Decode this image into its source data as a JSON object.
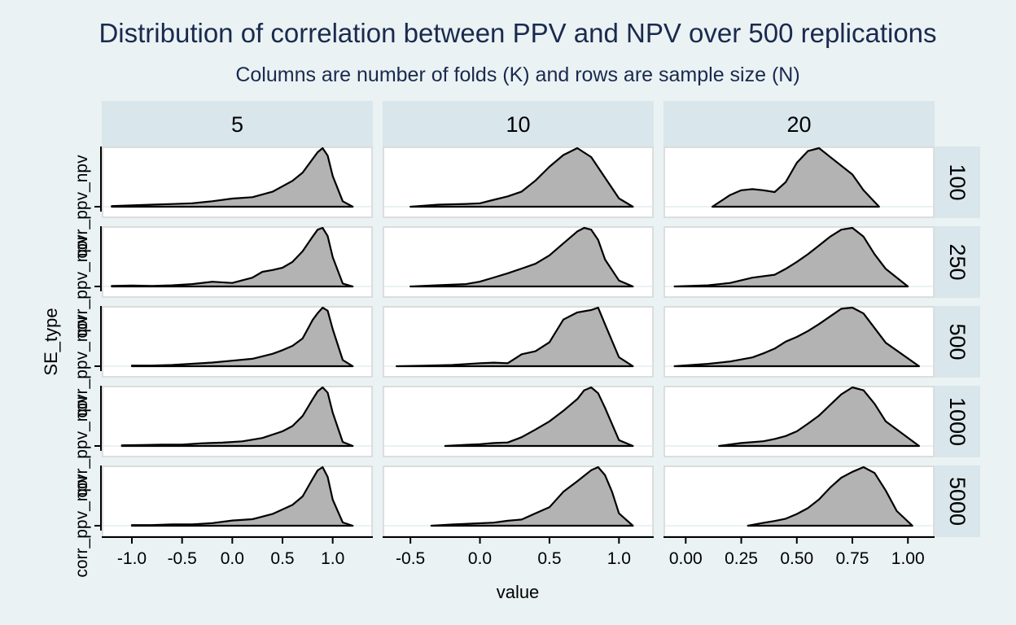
{
  "chart_data": {
    "type": "area",
    "title": "Distribution of correlation between PPV and NPV over 500 replications",
    "subtitle": "Columns are number of folds (K) and rows are sample size (N)",
    "xlabel": "value",
    "ylabel": "SE_type",
    "y_tick_labels": [
      "corr_ppv_npv",
      "corr_ppv_npv",
      "corr_ppv_npv",
      "corr_ppv_npv",
      "corr_ppv_npv"
    ],
    "columns": [
      "5",
      "10",
      "20"
    ],
    "rows": [
      "100",
      "250",
      "500",
      "1000",
      "5000"
    ],
    "x_ticks": [
      {
        "values": [
          -1.0,
          -0.5,
          0.0,
          0.5,
          1.0
        ],
        "labels": [
          "-1.0",
          "-0.5",
          "0.0",
          "0.5",
          "1.0"
        ],
        "xlim": [
          -1.3,
          1.4
        ]
      },
      {
        "values": [
          -0.5,
          0.0,
          0.5,
          1.0
        ],
        "labels": [
          "-0.5",
          "0.0",
          "0.5",
          "1.0"
        ],
        "xlim": [
          -0.7,
          1.25
        ]
      },
      {
        "values": [
          0.0,
          0.25,
          0.5,
          0.75,
          1.0
        ],
        "labels": [
          "0.00",
          "0.25",
          "0.50",
          "0.75",
          "1.00"
        ],
        "xlim": [
          -0.1,
          1.12
        ]
      }
    ],
    "fill_color": "#b3b3b3",
    "line_color": "#000000",
    "panels": [
      [
        {
          "x": [
            -1.2,
            -1.0,
            -0.8,
            -0.6,
            -0.4,
            -0.2,
            0.0,
            0.2,
            0.4,
            0.6,
            0.7,
            0.8,
            0.85,
            0.9,
            0.95,
            1.0,
            1.1,
            1.2
          ],
          "density": [
            0.01,
            0.02,
            0.03,
            0.04,
            0.05,
            0.08,
            0.12,
            0.14,
            0.22,
            0.38,
            0.5,
            0.7,
            0.8,
            0.86,
            0.75,
            0.45,
            0.08,
            0.0
          ]
        },
        {
          "x": [
            -1.2,
            -1.0,
            -0.8,
            -0.6,
            -0.4,
            -0.2,
            0.0,
            0.2,
            0.3,
            0.4,
            0.5,
            0.6,
            0.7,
            0.8,
            0.85,
            0.9,
            0.95,
            1.0,
            1.1,
            1.2
          ],
          "density": [
            0.01,
            0.015,
            0.01,
            0.02,
            0.04,
            0.08,
            0.06,
            0.15,
            0.25,
            0.28,
            0.32,
            0.42,
            0.6,
            0.85,
            0.97,
            1.0,
            0.86,
            0.5,
            0.05,
            0.0
          ]
        },
        {
          "x": [
            -1.0,
            -0.8,
            -0.6,
            -0.4,
            -0.2,
            0.0,
            0.2,
            0.4,
            0.5,
            0.6,
            0.7,
            0.8,
            0.85,
            0.9,
            0.95,
            1.0,
            1.1,
            1.2
          ],
          "density": [
            0.01,
            0.01,
            0.02,
            0.04,
            0.06,
            0.09,
            0.12,
            0.2,
            0.26,
            0.33,
            0.45,
            0.75,
            0.86,
            0.95,
            0.9,
            0.6,
            0.1,
            0.0
          ]
        },
        {
          "x": [
            -1.1,
            -0.9,
            -0.7,
            -0.5,
            -0.3,
            -0.1,
            0.1,
            0.3,
            0.5,
            0.6,
            0.7,
            0.8,
            0.85,
            0.9,
            0.95,
            1.0,
            1.1,
            1.2
          ],
          "density": [
            0.01,
            0.015,
            0.02,
            0.02,
            0.04,
            0.05,
            0.07,
            0.12,
            0.22,
            0.3,
            0.45,
            0.7,
            0.82,
            0.88,
            0.8,
            0.5,
            0.06,
            0.0
          ]
        },
        {
          "x": [
            -1.0,
            -0.8,
            -0.6,
            -0.4,
            -0.2,
            0.0,
            0.2,
            0.4,
            0.5,
            0.6,
            0.7,
            0.8,
            0.85,
            0.9,
            0.95,
            1.0,
            1.1,
            1.2
          ],
          "density": [
            0.01,
            0.01,
            0.02,
            0.02,
            0.04,
            0.08,
            0.1,
            0.18,
            0.25,
            0.32,
            0.45,
            0.72,
            0.85,
            0.9,
            0.75,
            0.4,
            0.05,
            0.0
          ]
        }
      ],
      [
        {
          "x": [
            -0.5,
            -0.3,
            -0.1,
            0.0,
            0.1,
            0.2,
            0.3,
            0.4,
            0.5,
            0.6,
            0.7,
            0.8,
            0.9,
            1.0,
            1.1
          ],
          "density": [
            0.0,
            0.03,
            0.04,
            0.05,
            0.1,
            0.15,
            0.22,
            0.38,
            0.58,
            0.75,
            0.85,
            0.72,
            0.42,
            0.12,
            0.0
          ]
        },
        {
          "x": [
            -0.5,
            -0.3,
            -0.1,
            0.0,
            0.1,
            0.2,
            0.3,
            0.4,
            0.5,
            0.6,
            0.7,
            0.75,
            0.8,
            0.85,
            0.9,
            1.0,
            1.1
          ],
          "density": [
            0.0,
            0.02,
            0.04,
            0.08,
            0.15,
            0.22,
            0.3,
            0.38,
            0.52,
            0.72,
            0.92,
            0.98,
            0.95,
            0.78,
            0.45,
            0.1,
            0.0
          ]
        },
        {
          "x": [
            -0.6,
            -0.4,
            -0.2,
            0.0,
            0.1,
            0.2,
            0.3,
            0.4,
            0.5,
            0.6,
            0.7,
            0.8,
            0.85,
            0.9,
            1.0,
            1.1
          ],
          "density": [
            0.0,
            0.01,
            0.02,
            0.05,
            0.06,
            0.05,
            0.2,
            0.25,
            0.4,
            0.78,
            0.9,
            0.94,
            0.98,
            0.7,
            0.15,
            0.0
          ]
        },
        {
          "x": [
            -0.25,
            -0.1,
            0.0,
            0.1,
            0.2,
            0.3,
            0.4,
            0.5,
            0.6,
            0.7,
            0.75,
            0.8,
            0.85,
            0.9,
            1.0,
            1.1
          ],
          "density": [
            0.0,
            0.02,
            0.03,
            0.05,
            0.06,
            0.15,
            0.28,
            0.42,
            0.6,
            0.8,
            0.95,
            1.0,
            0.9,
            0.65,
            0.1,
            0.0
          ]
        },
        {
          "x": [
            -0.35,
            -0.2,
            0.0,
            0.1,
            0.2,
            0.3,
            0.4,
            0.5,
            0.6,
            0.7,
            0.8,
            0.85,
            0.9,
            0.95,
            1.0,
            1.1
          ],
          "density": [
            0.0,
            0.02,
            0.04,
            0.05,
            0.08,
            0.1,
            0.2,
            0.3,
            0.55,
            0.72,
            0.9,
            0.95,
            0.82,
            0.55,
            0.2,
            0.0
          ]
        }
      ],
      [
        {
          "x": [
            0.12,
            0.2,
            0.25,
            0.3,
            0.35,
            0.4,
            0.45,
            0.5,
            0.55,
            0.6,
            0.65,
            0.7,
            0.75,
            0.8,
            0.87
          ],
          "density": [
            0.0,
            0.2,
            0.28,
            0.3,
            0.28,
            0.25,
            0.42,
            0.75,
            0.95,
            1.0,
            0.85,
            0.7,
            0.55,
            0.28,
            0.0
          ]
        },
        {
          "x": [
            -0.05,
            0.1,
            0.2,
            0.3,
            0.4,
            0.45,
            0.5,
            0.55,
            0.6,
            0.65,
            0.7,
            0.75,
            0.8,
            0.85,
            0.9,
            1.0
          ],
          "density": [
            0.0,
            0.02,
            0.06,
            0.15,
            0.2,
            0.3,
            0.42,
            0.55,
            0.7,
            0.85,
            0.97,
            1.0,
            0.85,
            0.55,
            0.3,
            0.0
          ]
        },
        {
          "x": [
            -0.05,
            0.1,
            0.2,
            0.3,
            0.35,
            0.4,
            0.45,
            0.5,
            0.55,
            0.6,
            0.65,
            0.7,
            0.75,
            0.8,
            0.9,
            1.05
          ],
          "density": [
            0.0,
            0.04,
            0.08,
            0.15,
            0.22,
            0.3,
            0.42,
            0.5,
            0.6,
            0.72,
            0.85,
            0.98,
            1.0,
            0.9,
            0.4,
            0.0
          ]
        },
        {
          "x": [
            0.15,
            0.25,
            0.35,
            0.4,
            0.45,
            0.5,
            0.55,
            0.6,
            0.65,
            0.7,
            0.75,
            0.8,
            0.85,
            0.9,
            1.05
          ],
          "density": [
            0.0,
            0.05,
            0.08,
            0.12,
            0.17,
            0.25,
            0.38,
            0.52,
            0.7,
            0.88,
            1.0,
            0.95,
            0.72,
            0.42,
            0.0
          ]
        },
        {
          "x": [
            0.28,
            0.35,
            0.4,
            0.45,
            0.5,
            0.55,
            0.6,
            0.65,
            0.7,
            0.75,
            0.8,
            0.85,
            0.9,
            0.95,
            1.02
          ],
          "density": [
            0.0,
            0.05,
            0.08,
            0.12,
            0.2,
            0.3,
            0.45,
            0.65,
            0.82,
            0.92,
            1.0,
            0.9,
            0.6,
            0.25,
            0.0
          ]
        }
      ]
    ]
  }
}
